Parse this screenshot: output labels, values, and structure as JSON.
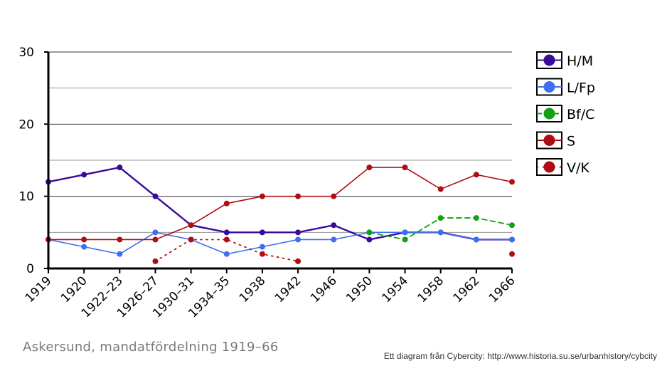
{
  "chart_data": {
    "type": "line",
    "title": "",
    "xlabel": "",
    "ylabel": "",
    "ylim": [
      0,
      30
    ],
    "yticks": [
      0,
      10,
      20,
      30
    ],
    "categories": [
      "1919",
      "1920",
      "1922–23",
      "1926–27",
      "1930–31",
      "1934–35",
      "1938",
      "1942",
      "1946",
      "1950",
      "1954",
      "1958",
      "1962",
      "1966"
    ],
    "grid": true,
    "legend_position": "right",
    "series": [
      {
        "name": "H/M",
        "color": "#3a0a9a",
        "style": "solid",
        "width": 2.4,
        "values": [
          12,
          13,
          14,
          10,
          6,
          5,
          5,
          5,
          6,
          4,
          5,
          5,
          4,
          4
        ]
      },
      {
        "name": "L/Fp",
        "color": "#3f6ff0",
        "style": "solid",
        "width": 1.6,
        "values": [
          4,
          3,
          2,
          5,
          4,
          2,
          3,
          4,
          4,
          5,
          5,
          5,
          4,
          4
        ]
      },
      {
        "name": "Bf/C",
        "color": "#14a014",
        "style": "dashed",
        "width": 1.8,
        "values": [
          null,
          null,
          null,
          null,
          null,
          null,
          null,
          null,
          null,
          5,
          4,
          7,
          7,
          6
        ]
      },
      {
        "name": "S",
        "color": "#b00c14",
        "style": "solid",
        "width": 1.6,
        "values": [
          4,
          4,
          4,
          4,
          6,
          9,
          10,
          10,
          10,
          14,
          14,
          11,
          13,
          12
        ]
      },
      {
        "name": "V/K",
        "color": "#b00c14",
        "style": "dotted",
        "width": 1.8,
        "values": [
          null,
          null,
          null,
          1,
          4,
          4,
          2,
          1,
          null,
          null,
          null,
          null,
          null,
          2
        ]
      }
    ]
  },
  "caption": "Askersund, mandatfördelning 1919–66",
  "credit": "Ett diagram från Cybercity: http://www.historia.su.se/urbanhistory/cybcity"
}
